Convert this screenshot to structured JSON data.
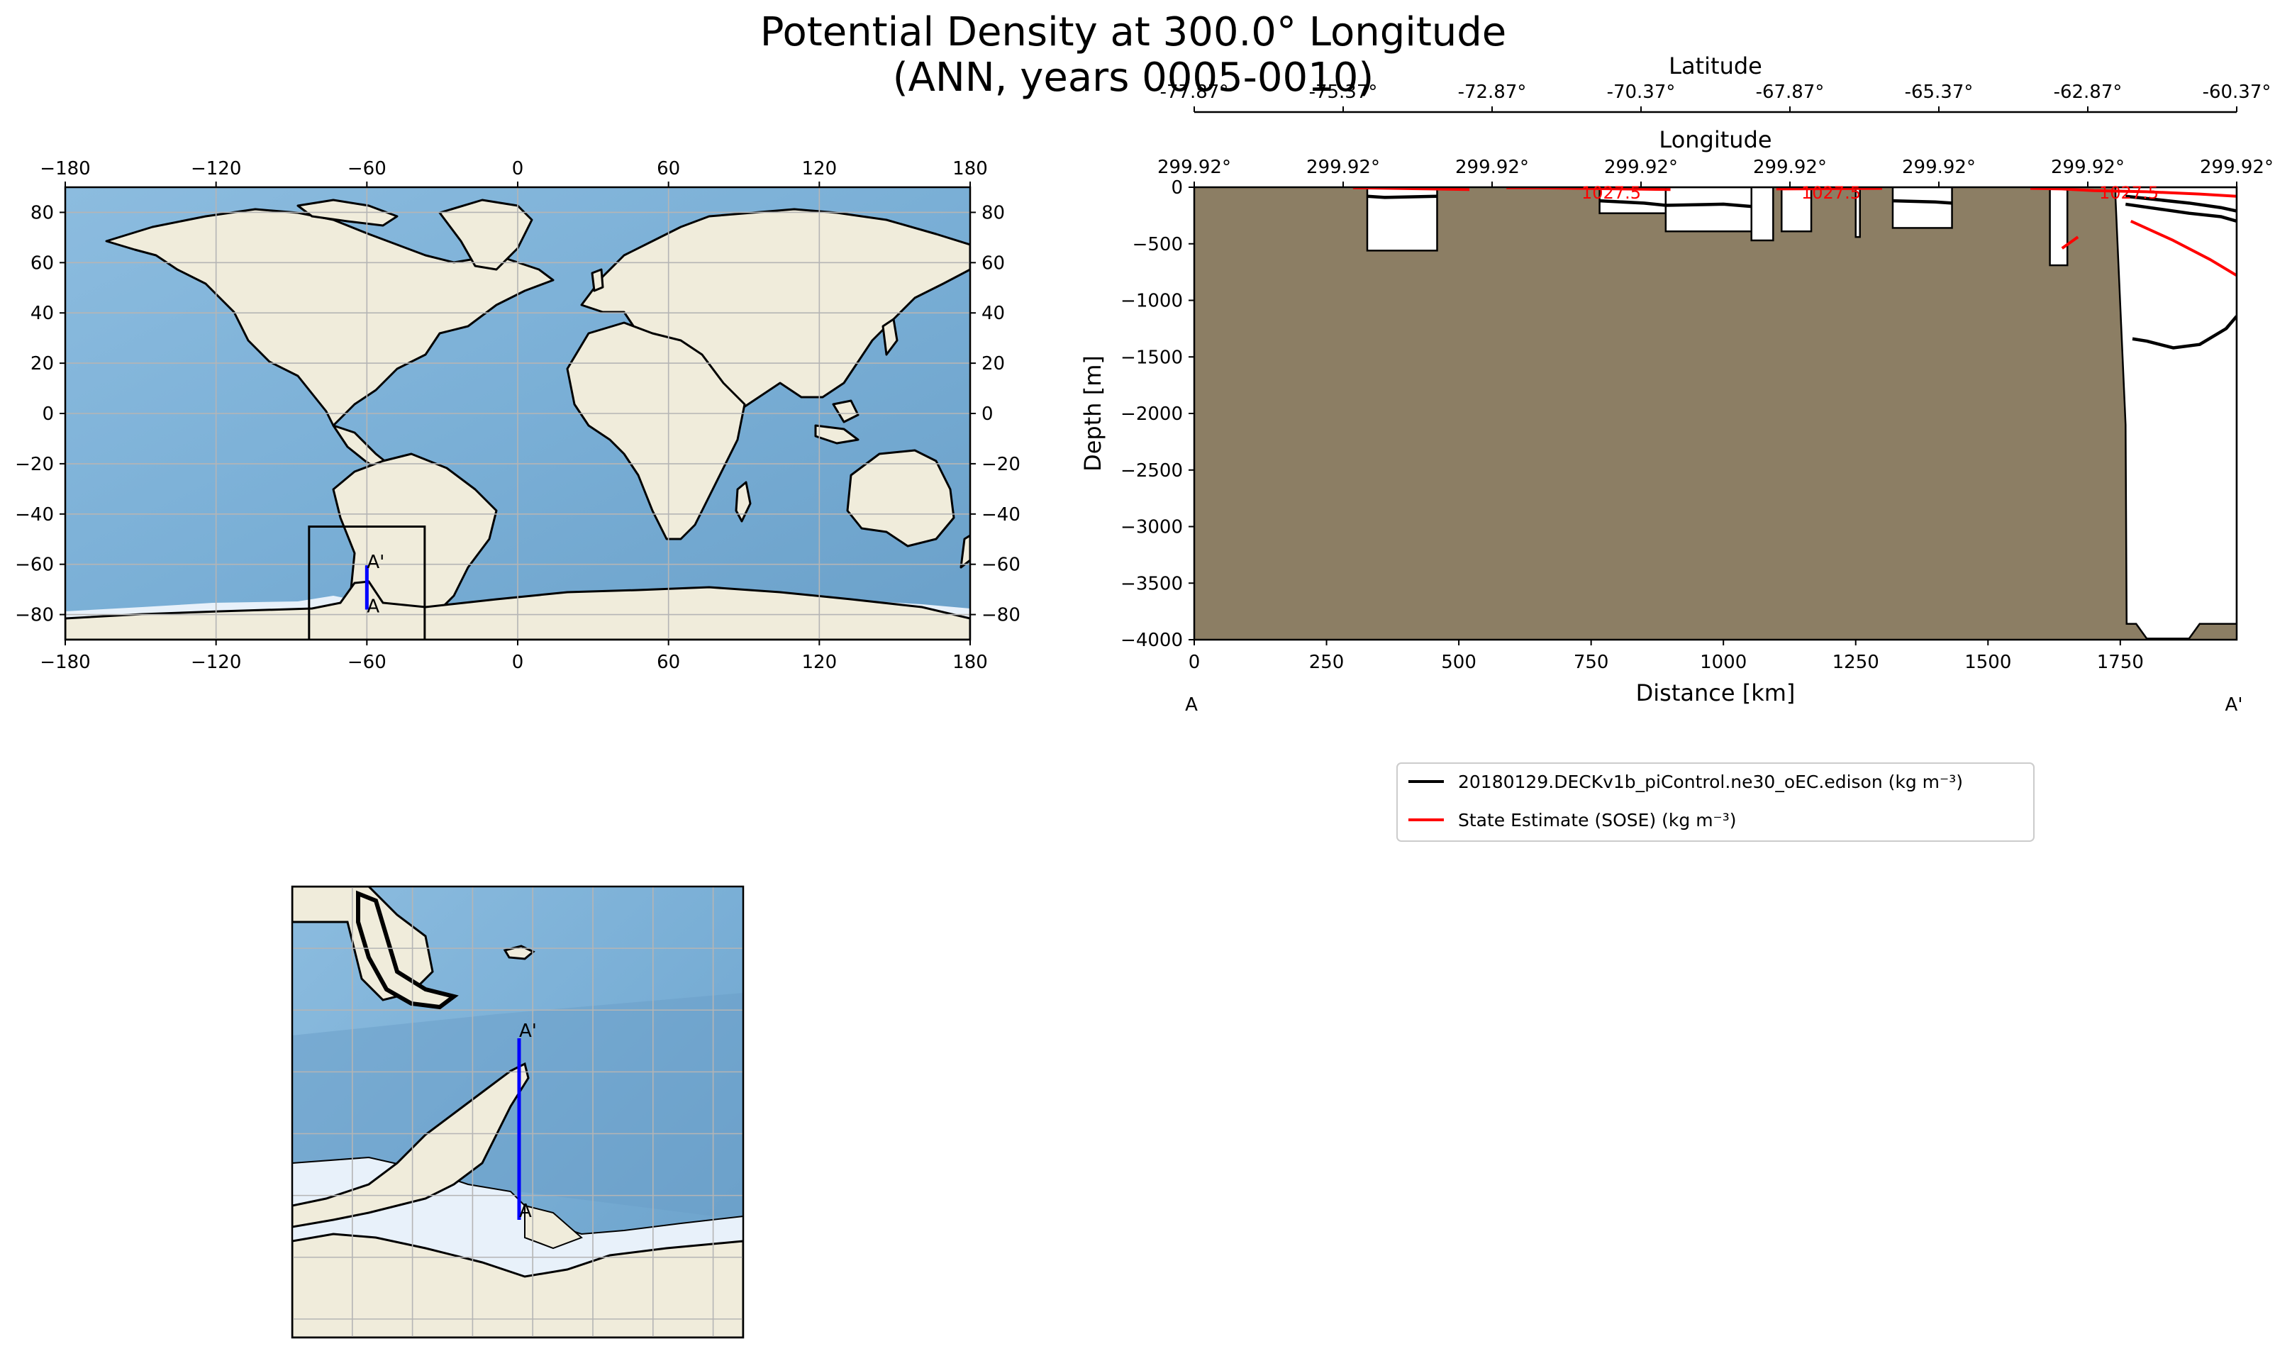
{
  "figure": {
    "title_line1": "Potential Density at 300.0° Longitude",
    "title_line2": "(ANN, years 0005-0010)",
    "colors": {
      "land": "#f0ecdb",
      "ocean": "#7fb2d6",
      "ocean_deep": "#6b9fc6",
      "ice": "#e8f1fa",
      "seafloor": "#8c7e64",
      "transect": "#0000ff",
      "model": "#000000",
      "obs": "#ff0000",
      "grid": "#b5b5b5"
    }
  },
  "global_map": {
    "lon_ticks": [
      "−180",
      "−120",
      "−60",
      "0",
      "60",
      "120",
      "180"
    ],
    "lat_ticks": [
      "80",
      "60",
      "40",
      "20",
      "0",
      "−20",
      "−40",
      "−60",
      "−80"
    ],
    "inset_box": {
      "lon": [
        -83,
        -37
      ],
      "lat": [
        -90,
        -45
      ]
    },
    "transect": {
      "lon": -60,
      "lat": [
        -78,
        -60.4
      ]
    },
    "label_start": "A",
    "label_end": "A'"
  },
  "zoom_map": {
    "label_start": "A",
    "label_end": "A'"
  },
  "chart_data": {
    "type": "line",
    "title": "",
    "xlabel": "Distance [km]",
    "ylabel": "Depth [m]",
    "xlim": [
      0,
      1970
    ],
    "ylim": [
      -4000,
      0
    ],
    "x_ticks": [
      "0",
      "250",
      "500",
      "750",
      "1000",
      "1250",
      "1500",
      "1750"
    ],
    "y_ticks": [
      "0",
      "−500",
      "−1000",
      "−1500",
      "−2000",
      "−2500",
      "−3000",
      "−3500",
      "−4000"
    ],
    "top_axis_1": {
      "label": "Longitude",
      "ticks": [
        "299.92°",
        "299.92°",
        "299.92°",
        "299.92°",
        "299.92°",
        "299.92°",
        "299.92°",
        "299.92°"
      ]
    },
    "top_axis_2": {
      "label": "Latitude",
      "ticks": [
        "-77.87°",
        "-75.37°",
        "-72.87°",
        "-70.37°",
        "-67.87°",
        "-65.37°",
        "-62.87°",
        "-60.37°"
      ]
    },
    "endpoint_left": "A",
    "endpoint_right": "A'",
    "contour_labels": [
      "1027.5",
      "1027.5",
      "1027.5"
    ],
    "ocean_columns": [
      {
        "x": [
          327,
          459
        ],
        "bottom": -560
      },
      {
        "x": [
          766,
          891
        ],
        "bottom": -230
      },
      {
        "x": [
          891,
          1053
        ],
        "bottom": -390
      },
      {
        "x": [
          1053,
          1094
        ],
        "bottom": -470
      },
      {
        "x": [
          1110,
          1166
        ],
        "bottom": -390
      },
      {
        "x": [
          1250,
          1258
        ],
        "bottom": -440
      },
      {
        "x": [
          1320,
          1432
        ],
        "bottom": -360
      },
      {
        "x": [
          1617,
          1650
        ],
        "bottom": -690
      }
    ],
    "deep_basin": {
      "x": [
        1741,
        1760,
        1762,
        1780,
        1800,
        1820,
        1840,
        1860,
        1880,
        1900,
        1920,
        1940,
        1960,
        1970
      ],
      "bottom": [
        -100,
        -2100,
        -3860,
        -3860,
        -3990,
        -3990,
        -3990,
        -3990,
        -3990,
        -3860,
        -3860,
        -3860,
        -3860,
        -3860
      ]
    },
    "series": [
      {
        "name": "20180129.DECKv1b_piControl.ne30_oEC.edison (kg m⁻³)",
        "color": "#000000",
        "lines": [
          {
            "x": [
              327,
              360,
              459
            ],
            "y": [
              -80,
              -90,
              -80
            ]
          },
          {
            "x": [
              766,
              850,
              891,
              1000,
              1053
            ],
            "y": [
              -120,
              -140,
              -160,
              -150,
              -170
            ]
          },
          {
            "x": [
              1320,
              1400,
              1432
            ],
            "y": [
              -120,
              -130,
              -140
            ]
          },
          {
            "x": [
              1760,
              1820,
              1880,
              1940,
              1970
            ],
            "y": [
              -80,
              -110,
              -140,
              -180,
              -210
            ]
          },
          {
            "x": [
              1760,
              1820,
              1880,
              1940,
              1970
            ],
            "y": [
              -150,
              -190,
              -230,
              -260,
              -300
            ]
          },
          {
            "x": [
              1773,
              1800,
              1850,
              1900,
              1950,
              1970
            ],
            "y": [
              -1340,
              -1360,
              -1420,
              -1390,
              -1250,
              -1140
            ]
          }
        ]
      },
      {
        "name": "State Estimate (SOSE) (kg m⁻³)",
        "color": "#ff0000",
        "lines": [
          {
            "x": [
              300,
              520
            ],
            "y": [
              -5,
              -20
            ]
          },
          {
            "x": [
              590,
              650,
              730,
              900
            ],
            "y": [
              -5,
              -5,
              -10,
              -20
            ]
          },
          {
            "x": [
              1100,
              1300
            ],
            "y": [
              -15,
              -10
            ]
          },
          {
            "x": [
              1580,
              1640,
              1700,
              1800,
              1900,
              1970
            ],
            "y": [
              -10,
              -15,
              -30,
              -40,
              -60,
              -80
            ]
          },
          {
            "x": [
              1640,
              1670
            ],
            "y": [
              -540,
              -440
            ]
          },
          {
            "x": [
              1770,
              1850,
              1920,
              1970
            ],
            "y": [
              -300,
              -470,
              -640,
              -780
            ]
          }
        ]
      }
    ]
  }
}
